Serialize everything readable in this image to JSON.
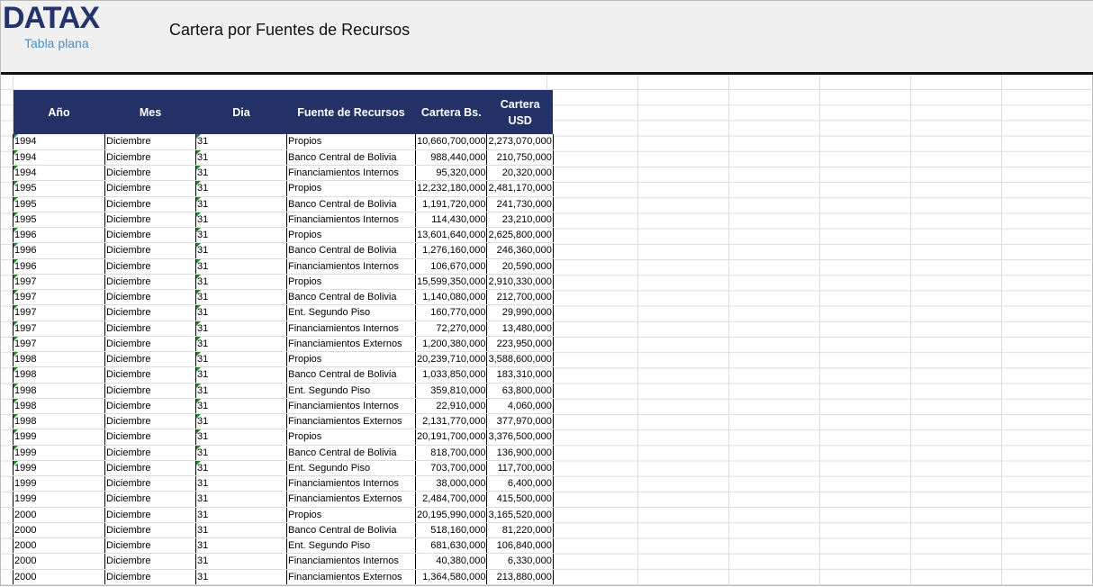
{
  "header": {
    "logo": "DATAX",
    "subtitle": "Tabla plana",
    "title": "Cartera por Fuentes de Recursos"
  },
  "table": {
    "columns": [
      "Año",
      "Mes",
      "Dia",
      "Fuente de Recursos",
      "Cartera Bs.",
      "Cartera USD"
    ],
    "rows": [
      [
        "1994",
        "Diciembre",
        "31",
        "Propios",
        "10,660,700,000",
        "2,273,070,000"
      ],
      [
        "1994",
        "Diciembre",
        "31",
        "Banco Central de Bolivia",
        "988,440,000",
        "210,750,000"
      ],
      [
        "1994",
        "Diciembre",
        "31",
        "Financiamientos Internos",
        "95,320,000",
        "20,320,000"
      ],
      [
        "1995",
        "Diciembre",
        "31",
        "Propios",
        "12,232,180,000",
        "2,481,170,000"
      ],
      [
        "1995",
        "Diciembre",
        "31",
        "Banco Central de Bolivia",
        "1,191,720,000",
        "241,730,000"
      ],
      [
        "1995",
        "Diciembre",
        "31",
        "Financiamientos Internos",
        "114,430,000",
        "23,210,000"
      ],
      [
        "1996",
        "Diciembre",
        "31",
        "Propios",
        "13,601,640,000",
        "2,625,800,000"
      ],
      [
        "1996",
        "Diciembre",
        "31",
        "Banco Central de Bolivia",
        "1,276,160,000",
        "246,360,000"
      ],
      [
        "1996",
        "Diciembre",
        "31",
        "Financiamientos Internos",
        "106,670,000",
        "20,590,000"
      ],
      [
        "1997",
        "Diciembre",
        "31",
        "Propios",
        "15,599,350,000",
        "2,910,330,000"
      ],
      [
        "1997",
        "Diciembre",
        "31",
        "Banco Central de Bolivia",
        "1,140,080,000",
        "212,700,000"
      ],
      [
        "1997",
        "Diciembre",
        "31",
        "Ent. Segundo Piso",
        "160,770,000",
        "29,990,000"
      ],
      [
        "1997",
        "Diciembre",
        "31",
        "Financiamientos Internos",
        "72,270,000",
        "13,480,000"
      ],
      [
        "1997",
        "Diciembre",
        "31",
        "Financiamientos Externos",
        "1,200,380,000",
        "223,950,000"
      ],
      [
        "1998",
        "Diciembre",
        "31",
        "Propios",
        "20,239,710,000",
        "3,588,600,000"
      ],
      [
        "1998",
        "Diciembre",
        "31",
        "Banco Central de Bolivia",
        "1,033,850,000",
        "183,310,000"
      ],
      [
        "1998",
        "Diciembre",
        "31",
        "Ent. Segundo Piso",
        "359,810,000",
        "63,800,000"
      ],
      [
        "1998",
        "Diciembre",
        "31",
        "Financiamientos Internos",
        "22,910,000",
        "4,060,000"
      ],
      [
        "1998",
        "Diciembre",
        "31",
        "Financiamientos Externos",
        "2,131,770,000",
        "377,970,000"
      ],
      [
        "1999",
        "Diciembre",
        "31",
        "Propios",
        "20,191,700,000",
        "3,376,500,000"
      ],
      [
        "1999",
        "Diciembre",
        "31",
        "Banco Central de Bolivia",
        "818,700,000",
        "136,900,000"
      ],
      [
        "1999",
        "Diciembre",
        "31",
        "Ent. Segundo Piso",
        "703,700,000",
        "117,700,000"
      ],
      [
        "1999",
        "Diciembre",
        "31",
        "Financiamientos Internos",
        "38,000,000",
        "6,400,000"
      ],
      [
        "1999",
        "Diciembre",
        "31",
        "Financiamientos Externos",
        "2,484,700,000",
        "415,500,000"
      ],
      [
        "2000",
        "Diciembre",
        "31",
        "Propios",
        "20,195,990,000",
        "3,165,520,000"
      ],
      [
        "2000",
        "Diciembre",
        "31",
        "Banco Central de Bolivia",
        "518,160,000",
        "81,220,000"
      ],
      [
        "2000",
        "Diciembre",
        "31",
        "Ent. Segundo Piso",
        "681,630,000",
        "106,840,000"
      ],
      [
        "2000",
        "Diciembre",
        "31",
        "Financiamientos Internos",
        "40,380,000",
        "6,330,000"
      ],
      [
        "2000",
        "Diciembre",
        "31",
        "Financiamientos Externos",
        "1,364,580,000",
        "213,880,000"
      ]
    ]
  }
}
